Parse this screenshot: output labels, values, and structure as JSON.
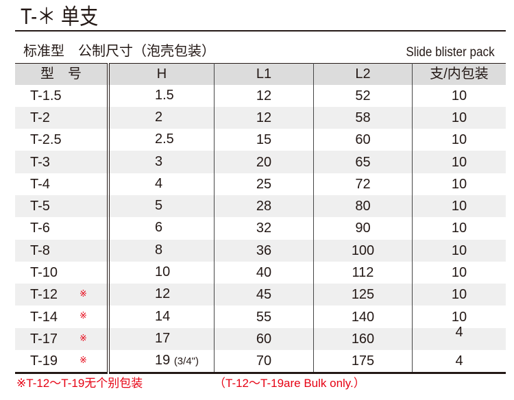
{
  "title": "T-＊  单支",
  "subtitle": "标准型　公制尺寸（泡壳包装）",
  "subtitle_en": "Slide blister pack",
  "headers": [
    "型　号",
    "H",
    "L1",
    "L2",
    "支/内包装"
  ],
  "rows": [
    {
      "model": "T-1.5",
      "mark": "",
      "h": "1.5",
      "h_extra": "",
      "l1": "12",
      "l2": "52",
      "qty": "10"
    },
    {
      "model": "T-2",
      "mark": "",
      "h": "2",
      "h_extra": "",
      "l1": "12",
      "l2": "58",
      "qty": "10"
    },
    {
      "model": "T-2.5",
      "mark": "",
      "h": "2.5",
      "h_extra": "",
      "l1": "15",
      "l2": "60",
      "qty": "10"
    },
    {
      "model": "T-3",
      "mark": "",
      "h": "3",
      "h_extra": "",
      "l1": "20",
      "l2": "65",
      "qty": "10"
    },
    {
      "model": "T-4",
      "mark": "",
      "h": "4",
      "h_extra": "",
      "l1": "25",
      "l2": "72",
      "qty": "10"
    },
    {
      "model": "T-5",
      "mark": "",
      "h": "5",
      "h_extra": "",
      "l1": "28",
      "l2": "80",
      "qty": "10"
    },
    {
      "model": "T-6",
      "mark": "",
      "h": "6",
      "h_extra": "",
      "l1": "32",
      "l2": "90",
      "qty": "10"
    },
    {
      "model": "T-8",
      "mark": "",
      "h": "8",
      "h_extra": "",
      "l1": "36",
      "l2": "100",
      "qty": "10"
    },
    {
      "model": "T-10",
      "mark": "",
      "h": "10",
      "h_extra": "",
      "l1": "40",
      "l2": "112",
      "qty": "10"
    },
    {
      "model": "T-12",
      "mark": "※",
      "h": "12",
      "h_extra": "",
      "l1": "45",
      "l2": "125",
      "qty": "10"
    },
    {
      "model": "T-14",
      "mark": "※",
      "h": "14",
      "h_extra": "",
      "l1": "55",
      "l2": "140",
      "qty": "10"
    },
    {
      "model": "T-17",
      "mark": "※",
      "h": "17",
      "h_extra": "",
      "l1": "60",
      "l2": "160",
      "qty": "4"
    },
    {
      "model": "T-19",
      "mark": "※",
      "h": "19",
      "h_extra": "(3/4\")",
      "l1": "70",
      "l2": "175",
      "qty": "4"
    }
  ],
  "note_cn": "※T-12～T-19无个别包装",
  "note_en": "（T-12～T-19are Bulk only.）",
  "colors": {
    "note": "#e60012",
    "header_bg": "#dcdcdc",
    "stripe": "#efefef"
  }
}
